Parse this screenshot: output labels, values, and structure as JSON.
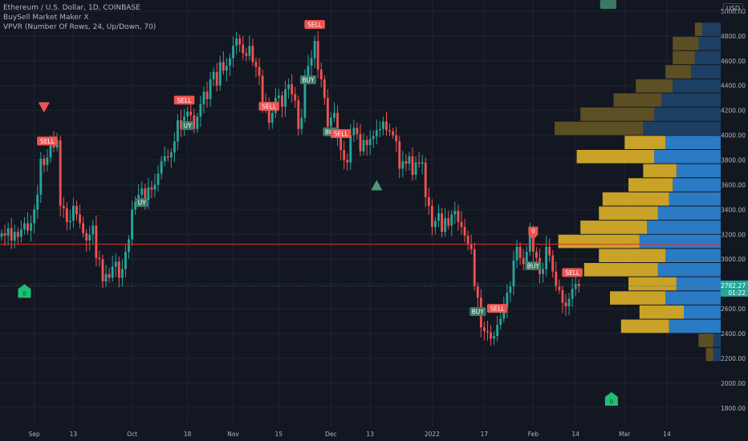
{
  "header": {
    "symbol_line": "Ethereum / U.S. Dollar, 1D, COINBASE",
    "indicator_1": "BuySell Market Maker X",
    "indicator_2": "VPVR (Number Of Rows, 24, Up/Down, 70)",
    "currency": "USD"
  },
  "colors": {
    "background": "#131722",
    "up": "#26a69a",
    "down": "#ef5350",
    "vp_up": "#2a7bc4",
    "vp_down": "#c9a227",
    "vp_up_dim": "#1d3f63",
    "vp_down_dim": "#5c4f24",
    "price_tag": "#26a69a",
    "hline": "#e0312f"
  },
  "chart_data": {
    "type": "candlestick",
    "title": "Ethereum / U.S. Dollar, 1D, COINBASE",
    "y_axis": {
      "ticks": [
        1800,
        2000,
        2200,
        2400,
        2600,
        2800,
        3000,
        3200,
        3400,
        3600,
        3800,
        4000,
        4200,
        4400,
        4600,
        4800,
        5000
      ],
      "tick_labels": [
        "1800.00",
        "2000.00",
        "2200.00",
        "2400.00",
        "2600.00",
        "2800.00",
        "3000.00",
        "3200.00",
        "3400.00",
        "3600.00",
        "3800.00",
        "4000.00",
        "4200.00",
        "4400.00",
        "4600.00",
        "4800.00",
        "5000.00"
      ],
      "range": [
        1650,
        5090
      ]
    },
    "x_axis": {
      "labels": [
        "Sep",
        "13",
        "Oct",
        "18",
        "Nov",
        "15",
        "Dec",
        "13",
        "2022",
        "17",
        "Feb",
        "14",
        "Mar",
        "14"
      ],
      "label_dates": [
        "2021-09-01",
        "2021-09-13",
        "2021-10-01",
        "2021-10-18",
        "2021-11-01",
        "2021-11-15",
        "2021-12-01",
        "2021-12-13",
        "2022-01-01",
        "2022-01-17",
        "2022-02-01",
        "2022-02-14",
        "2022-03-01",
        "2022-03-14"
      ],
      "start_date": "2021-08-22",
      "end_date": "2022-03-31"
    },
    "last_price": {
      "value": 2782.27,
      "label": "2782.27",
      "countdown": "01:22"
    },
    "horizontal_line": 3120,
    "closes": [
      3210,
      3190,
      3250,
      3150,
      3220,
      3180,
      3240,
      3290,
      3230,
      3290,
      3400,
      3520,
      3810,
      3760,
      3820,
      3950,
      3900,
      3960,
      3430,
      3410,
      3300,
      3310,
      3430,
      3360,
      3290,
      3210,
      3150,
      3200,
      3270,
      3010,
      3000,
      2820,
      2880,
      2850,
      2940,
      2980,
      2850,
      2920,
      3060,
      3160,
      3400,
      3460,
      3520,
      3570,
      3480,
      3580,
      3560,
      3600,
      3690,
      3790,
      3830,
      3820,
      3860,
      3950,
      4120,
      4050,
      4150,
      4190,
      4160,
      4050,
      4150,
      4250,
      4350,
      4290,
      4450,
      4510,
      4400,
      4590,
      4520,
      4560,
      4620,
      4720,
      4780,
      4730,
      4660,
      4640,
      4720,
      4590,
      4550,
      4480,
      4250,
      4240,
      4100,
      4180,
      4300,
      4320,
      4230,
      4370,
      4410,
      4330,
      4280,
      4050,
      4140,
      4480,
      4560,
      4620,
      4760,
      4530,
      4450,
      4300,
      4070,
      4140,
      4180,
      4000,
      3880,
      3800,
      3780,
      4000,
      4060,
      4010,
      3870,
      3960,
      3920,
      3970,
      3990,
      4040,
      4050,
      4110,
      4040,
      4030,
      4000,
      3950,
      3730,
      3790,
      3770,
      3830,
      3680,
      3780,
      3770,
      3780,
      3500,
      3430,
      3260,
      3310,
      3370,
      3220,
      3330,
      3270,
      3360,
      3390,
      3300,
      3260,
      3190,
      3120,
      3080,
      2780,
      2690,
      2450,
      2420,
      2410,
      2360,
      2380,
      2470,
      2520,
      2610,
      2730,
      2780,
      2990,
      3100,
      3010,
      2960,
      3060,
      3210,
      3060,
      3010,
      2880,
      2920,
      3100,
      3030,
      2900,
      2780,
      2750,
      2650,
      2620,
      2680,
      2760,
      2800,
      2782.27
    ],
    "signals": [
      {
        "label": "SELL",
        "type": "sell",
        "day": 14
      },
      {
        "label": "UY",
        "type": "buy",
        "day": 43
      },
      {
        "label": "SELL",
        "type": "sell",
        "day": 56
      },
      {
        "label": "UY",
        "type": "buy",
        "day": 57
      },
      {
        "label": "SELL",
        "type": "sell",
        "day": 82
      },
      {
        "label": "SELL",
        "type": "sell",
        "day": 96
      },
      {
        "label": "BUY",
        "type": "buy",
        "day": 94
      },
      {
        "label": "BUY",
        "type": "buy",
        "day": 101
      },
      {
        "label": "SELL",
        "type": "sell",
        "day": 104
      },
      {
        "label": "BUY",
        "type": "buy",
        "day": 146
      },
      {
        "label": "SELL",
        "type": "sell",
        "day": 152
      },
      {
        "label": "BUY",
        "type": "buy",
        "day": 163
      },
      {
        "label": "SELL",
        "type": "sell",
        "day": 175
      },
      {
        "label": "BUY",
        "type": "buy",
        "day": 186
      }
    ],
    "markers": [
      {
        "shape": "triangle-down",
        "color": "#ef5350",
        "day": 13,
        "price": 4220
      },
      {
        "shape": "triangle-up",
        "color": "#4c9a7a",
        "day": 115,
        "price": 3600
      },
      {
        "shape": "pentagon",
        "label": "0",
        "color": "#1dbf73",
        "day": 7,
        "price": 2740
      },
      {
        "shape": "pentagon",
        "label": "0",
        "color": "#1dbf73",
        "day": 187,
        "price": 1870
      },
      {
        "shape": "pentagon-down",
        "label": "0",
        "color": "#ef5350",
        "day": 163,
        "price": 3210
      }
    ],
    "volume_profile": {
      "row_height": 114,
      "rows": [
        {
          "price": 4850,
          "up": 0.1,
          "down": 0.04
        },
        {
          "price": 4736,
          "up": 0.12,
          "down": 0.14
        },
        {
          "price": 4622,
          "up": 0.14,
          "down": 0.12
        },
        {
          "price": 4508,
          "up": 0.16,
          "down": 0.14
        },
        {
          "price": 4394,
          "up": 0.26,
          "down": 0.2
        },
        {
          "price": 4280,
          "up": 0.32,
          "down": 0.26
        },
        {
          "price": 4166,
          "up": 0.36,
          "down": 0.4
        },
        {
          "price": 4052,
          "up": 0.42,
          "down": 0.48
        },
        {
          "price": 3938,
          "up": 0.3,
          "down": 0.22
        },
        {
          "price": 3824,
          "up": 0.36,
          "down": 0.42
        },
        {
          "price": 3710,
          "up": 0.24,
          "down": 0.18
        },
        {
          "price": 3596,
          "up": 0.26,
          "down": 0.24
        },
        {
          "price": 3482,
          "up": 0.28,
          "down": 0.36
        },
        {
          "price": 3368,
          "up": 0.34,
          "down": 0.32
        },
        {
          "price": 3254,
          "up": 0.4,
          "down": 0.36
        },
        {
          "price": 3140,
          "up": 0.44,
          "down": 0.44
        },
        {
          "price": 3026,
          "up": 0.3,
          "down": 0.36
        },
        {
          "price": 2912,
          "up": 0.34,
          "down": 0.4
        },
        {
          "price": 2798,
          "up": 0.24,
          "down": 0.26
        },
        {
          "price": 2684,
          "up": 0.3,
          "down": 0.3
        },
        {
          "price": 2570,
          "up": 0.2,
          "down": 0.24
        },
        {
          "price": 2456,
          "up": 0.28,
          "down": 0.26
        },
        {
          "price": 2342,
          "up": 0.04,
          "down": 0.08
        },
        {
          "price": 2228,
          "up": 0.04,
          "down": 0.04
        }
      ]
    }
  }
}
